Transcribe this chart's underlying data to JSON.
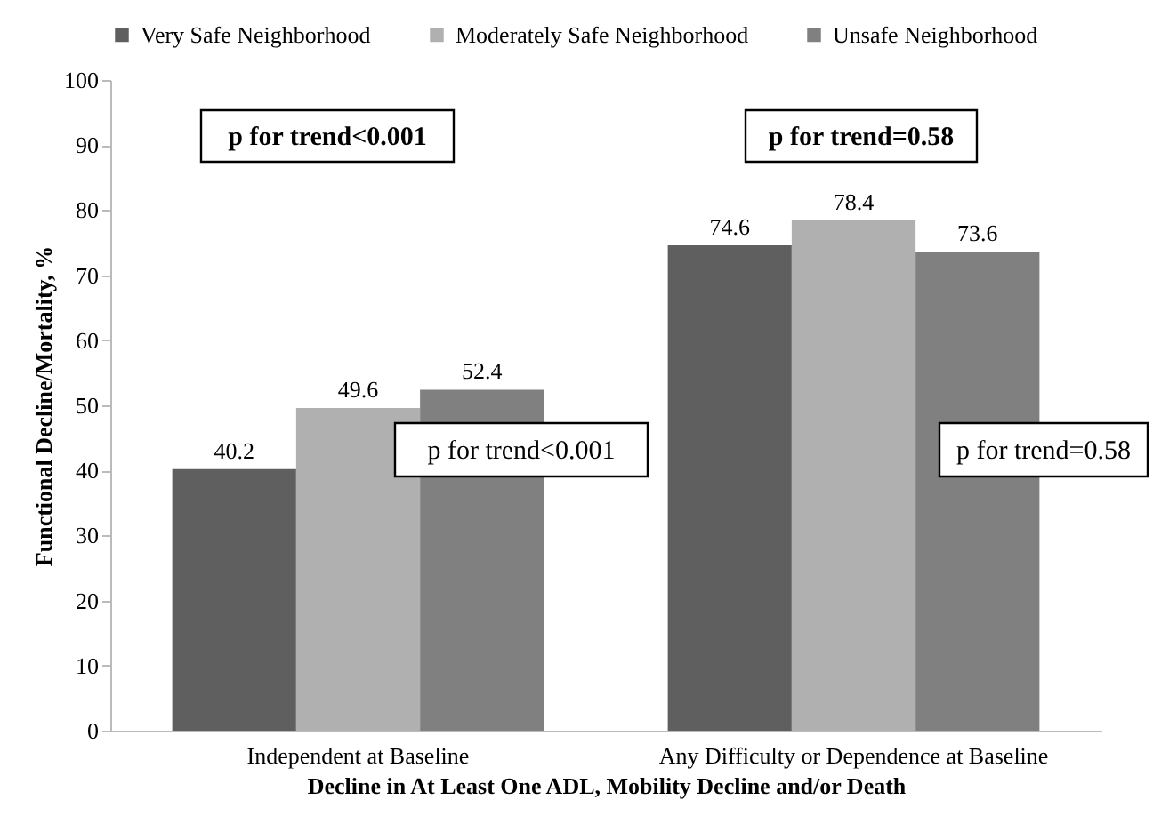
{
  "chart_data": {
    "type": "bar",
    "xlabel": "Decline in At Least One ADL, Mobility Decline and/or Death",
    "ylabel": "Functional Decline/Mortality, %",
    "categories": [
      "Independent at Baseline",
      "Any Difficulty or Dependence at Baseline"
    ],
    "series": [
      {
        "name": "Very Safe Neighborhood",
        "color": "#5f5f5f",
        "values": [
          40.2,
          74.6
        ]
      },
      {
        "name": "Moderately Safe Neighborhood",
        "color": "#b0b0b0",
        "values": [
          49.6,
          78.4
        ]
      },
      {
        "name": "Unsafe Neighborhood",
        "color": "#808080",
        "values": [
          52.4,
          73.6
        ]
      }
    ],
    "ylim": [
      0,
      100
    ],
    "yticks": [
      0,
      10,
      20,
      30,
      40,
      50,
      60,
      70,
      80,
      90,
      100
    ],
    "grid": false,
    "legend": "top",
    "data_labels": true,
    "annotations": [
      "p for trend<0.001",
      "p for trend=0.58",
      "p for trend<0.001",
      "p for trend=0.58"
    ]
  }
}
